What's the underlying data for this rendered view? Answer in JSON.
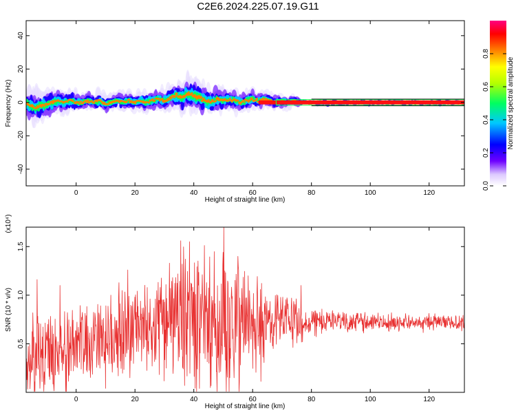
{
  "title": "C2E6.2024.225.07.19.G11",
  "chart_data": [
    {
      "type": "heatmap",
      "xlabel": "Height of straight line (km)",
      "ylabel": "Frequency (Hz)",
      "xlim": [
        -17,
        132
      ],
      "ylim": [
        -50,
        49
      ],
      "xticks": [
        0,
        20,
        40,
        60,
        80,
        100,
        120
      ],
      "yticks": [
        -40,
        -20,
        0,
        20,
        40
      ],
      "colorbar": {
        "label": "Normalized spectral amplitude",
        "range": [
          0.0,
          1.0
        ],
        "ticks": [
          0.0,
          0.2,
          0.4,
          0.6,
          0.8
        ],
        "colors": [
          "#ffffff",
          "#5500ff",
          "#0000ff",
          "#00c8ff",
          "#00ff60",
          "#b4ff00",
          "#ffff00",
          "#ff8000",
          "#ff0000",
          "#ff0080"
        ]
      },
      "center_line": [
        [
          -16,
          -1
        ],
        [
          -14,
          -3
        ],
        [
          -12,
          -2
        ],
        [
          -10,
          -1
        ],
        [
          -8,
          0
        ],
        [
          -6,
          1
        ],
        [
          -4,
          0
        ],
        [
          -2,
          1
        ],
        [
          0,
          0
        ],
        [
          2,
          0
        ],
        [
          4,
          1
        ],
        [
          6,
          0
        ],
        [
          8,
          1
        ],
        [
          10,
          -1
        ],
        [
          12,
          0
        ],
        [
          14,
          1
        ],
        [
          16,
          0
        ],
        [
          18,
          1
        ],
        [
          20,
          0
        ],
        [
          22,
          1
        ],
        [
          24,
          0
        ],
        [
          26,
          1
        ],
        [
          28,
          2
        ],
        [
          30,
          1
        ],
        [
          32,
          3
        ],
        [
          34,
          4
        ],
        [
          36,
          3
        ],
        [
          38,
          5
        ],
        [
          40,
          4
        ],
        [
          42,
          3
        ],
        [
          44,
          1
        ],
        [
          46,
          0
        ],
        [
          48,
          2
        ],
        [
          50,
          1
        ],
        [
          52,
          2
        ],
        [
          54,
          1
        ],
        [
          56,
          0
        ],
        [
          58,
          1
        ],
        [
          60,
          2
        ],
        [
          62,
          1
        ],
        [
          64,
          2
        ],
        [
          66,
          1
        ],
        [
          68,
          0
        ],
        [
          70,
          1
        ],
        [
          72,
          0
        ],
        [
          74,
          1
        ],
        [
          76,
          0
        ],
        [
          80,
          0
        ],
        [
          90,
          0
        ],
        [
          100,
          0
        ],
        [
          110,
          0
        ],
        [
          120,
          0
        ],
        [
          132,
          0
        ]
      ],
      "spread_hz": [
        [
          -16,
          7
        ],
        [
          -10,
          6
        ],
        [
          -4,
          5
        ],
        [
          2,
          4
        ],
        [
          10,
          4
        ],
        [
          20,
          4
        ],
        [
          30,
          5
        ],
        [
          36,
          7
        ],
        [
          40,
          8
        ],
        [
          44,
          7
        ],
        [
          50,
          5
        ],
        [
          60,
          4
        ],
        [
          70,
          3
        ],
        [
          76,
          2
        ],
        [
          80,
          2
        ],
        [
          132,
          2
        ]
      ],
      "band_lines_hz": [
        2,
        -2
      ]
    },
    {
      "type": "line",
      "xlabel": "Height of straight line (km)",
      "ylabel": "SNR (10 * v/v)",
      "y_multiplier_label": "(x10⁴)",
      "xlim": [
        -17,
        132
      ],
      "ylim": [
        0,
        1.7
      ],
      "xticks": [
        0,
        20,
        40,
        60,
        80,
        100,
        120
      ],
      "yticks": [
        0.5,
        1.0,
        1.5
      ],
      "color": "#e83030",
      "mean_envelope": [
        [
          -16,
          0.35
        ],
        [
          -10,
          0.4
        ],
        [
          -5,
          0.45
        ],
        [
          0,
          0.5
        ],
        [
          5,
          0.5
        ],
        [
          10,
          0.55
        ],
        [
          15,
          0.6
        ],
        [
          20,
          0.65
        ],
        [
          25,
          0.7
        ],
        [
          30,
          0.72
        ],
        [
          35,
          0.72
        ],
        [
          40,
          0.72
        ],
        [
          45,
          0.72
        ],
        [
          50,
          0.72
        ],
        [
          55,
          0.72
        ],
        [
          60,
          0.72
        ],
        [
          65,
          0.72
        ],
        [
          70,
          0.73
        ],
        [
          75,
          0.74
        ],
        [
          80,
          0.74
        ],
        [
          85,
          0.75
        ],
        [
          90,
          0.74
        ],
        [
          95,
          0.73
        ],
        [
          100,
          0.73
        ],
        [
          105,
          0.72
        ],
        [
          110,
          0.72
        ],
        [
          115,
          0.72
        ],
        [
          120,
          0.72
        ],
        [
          125,
          0.72
        ],
        [
          132,
          0.72
        ]
      ],
      "amplitude_envelope": [
        [
          -16,
          0.3
        ],
        [
          -10,
          0.35
        ],
        [
          -5,
          0.3
        ],
        [
          0,
          0.3
        ],
        [
          5,
          0.3
        ],
        [
          10,
          0.35
        ],
        [
          15,
          0.35
        ],
        [
          20,
          0.3
        ],
        [
          25,
          0.3
        ],
        [
          30,
          0.35
        ],
        [
          35,
          0.5
        ],
        [
          40,
          0.55
        ],
        [
          45,
          0.55
        ],
        [
          50,
          0.55
        ],
        [
          55,
          0.5
        ],
        [
          60,
          0.4
        ],
        [
          65,
          0.3
        ],
        [
          70,
          0.22
        ],
        [
          75,
          0.14
        ],
        [
          80,
          0.1
        ],
        [
          90,
          0.08
        ],
        [
          100,
          0.07
        ],
        [
          110,
          0.06
        ],
        [
          120,
          0.06
        ],
        [
          132,
          0.06
        ]
      ],
      "peaks": [
        [
          -13.3,
          1.16
        ],
        [
          -5.5,
          1.1
        ],
        [
          11.8,
          1.0
        ],
        [
          17.5,
          1.26
        ],
        [
          35.5,
          1.56
        ],
        [
          38.5,
          1.55
        ],
        [
          50.2,
          1.7
        ],
        [
          55.0,
          1.4
        ],
        [
          58.5,
          1.2
        ],
        [
          76.5,
          1.1
        ]
      ]
    }
  ]
}
